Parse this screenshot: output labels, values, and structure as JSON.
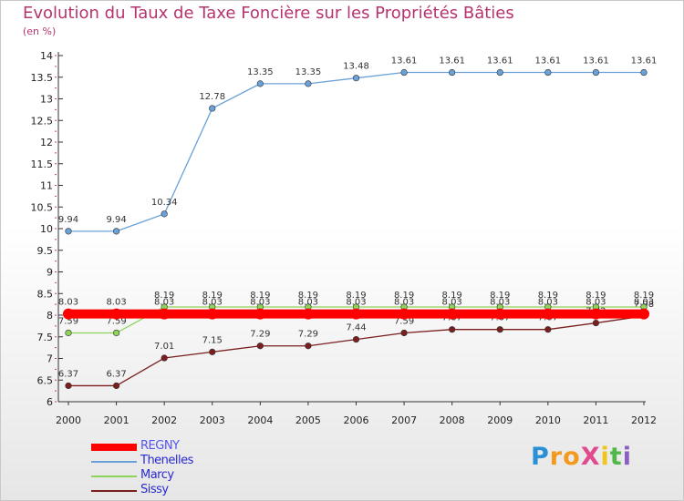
{
  "chart_data": {
    "type": "line",
    "title": "Evolution du Taux de Taxe Foncière sur les Propriétés Bâties",
    "unit_label": "(en %)",
    "xlabel": "",
    "ylabel": "",
    "x": [
      "2000",
      "2001",
      "2002",
      "2003",
      "2004",
      "2005",
      "2006",
      "2007",
      "2008",
      "2009",
      "2010",
      "2011",
      "2012"
    ],
    "ylim": [
      6,
      14
    ],
    "yticks": [
      "6",
      "6.5",
      "7",
      "7.5",
      "8",
      "8.5",
      "9",
      "9.5",
      "10",
      "10.5",
      "11",
      "11.5",
      "12",
      "12.5",
      "13",
      "13.5",
      "14"
    ],
    "series": [
      {
        "name": "REGNY",
        "color": "#ff0000",
        "values": [
          8.03,
          8.03,
          8.03,
          8.03,
          8.03,
          8.03,
          8.03,
          8.03,
          8.03,
          8.03,
          8.03,
          8.03,
          8.03
        ],
        "labels": [
          "8.03",
          "8.03",
          "8.03",
          "8.03",
          "8.03",
          "8.03",
          "8.03",
          "8.03",
          "8.03",
          "8.03",
          "8.03",
          "8.03",
          "8.03"
        ]
      },
      {
        "name": "Thenelles",
        "color": "#6aa1d8",
        "values": [
          9.94,
          9.94,
          10.34,
          12.78,
          13.35,
          13.35,
          13.48,
          13.61,
          13.61,
          13.61,
          13.61,
          13.61,
          13.61
        ],
        "labels": [
          "9.94",
          "9.94",
          "10.34",
          "12.78",
          "13.35",
          "13.35",
          "13.48",
          "13.61",
          "13.61",
          "13.61",
          "13.61",
          "13.61",
          "13.61"
        ]
      },
      {
        "name": "Marcy",
        "color": "#8fd45a",
        "values": [
          7.59,
          7.59,
          8.19,
          8.19,
          8.19,
          8.19,
          8.19,
          8.19,
          8.19,
          8.19,
          8.19,
          8.19,
          8.19
        ],
        "labels": [
          "7.59",
          "7.59",
          "8.19",
          "8.19",
          "8.19",
          "8.19",
          "8.19",
          "8.19",
          "8.19",
          "8.19",
          "8.19",
          "8.19",
          "8.19"
        ]
      },
      {
        "name": "Sissy",
        "color": "#7a1e1e",
        "values": [
          6.37,
          6.37,
          7.01,
          7.15,
          7.29,
          7.29,
          7.44,
          7.59,
          7.67,
          7.67,
          7.67,
          7.82,
          7.98
        ],
        "labels": [
          "6.37",
          "6.37",
          "7.01",
          "7.15",
          "7.29",
          "7.29",
          "7.44",
          "7.59",
          "7.67",
          "7.67",
          "7.67",
          "7.82",
          "7.98"
        ]
      }
    ],
    "legend": "bottom-left",
    "grid": false
  },
  "logo": {
    "text": "ProXiti",
    "letters": [
      "P",
      "r",
      "o",
      "X",
      "i",
      "t",
      "i"
    ],
    "colors": [
      "#2b8fd6",
      "#f39a1e",
      "#f39a1e",
      "#e04a8f",
      "#f0c419",
      "#4fb848",
      "#8c5cc7"
    ]
  }
}
